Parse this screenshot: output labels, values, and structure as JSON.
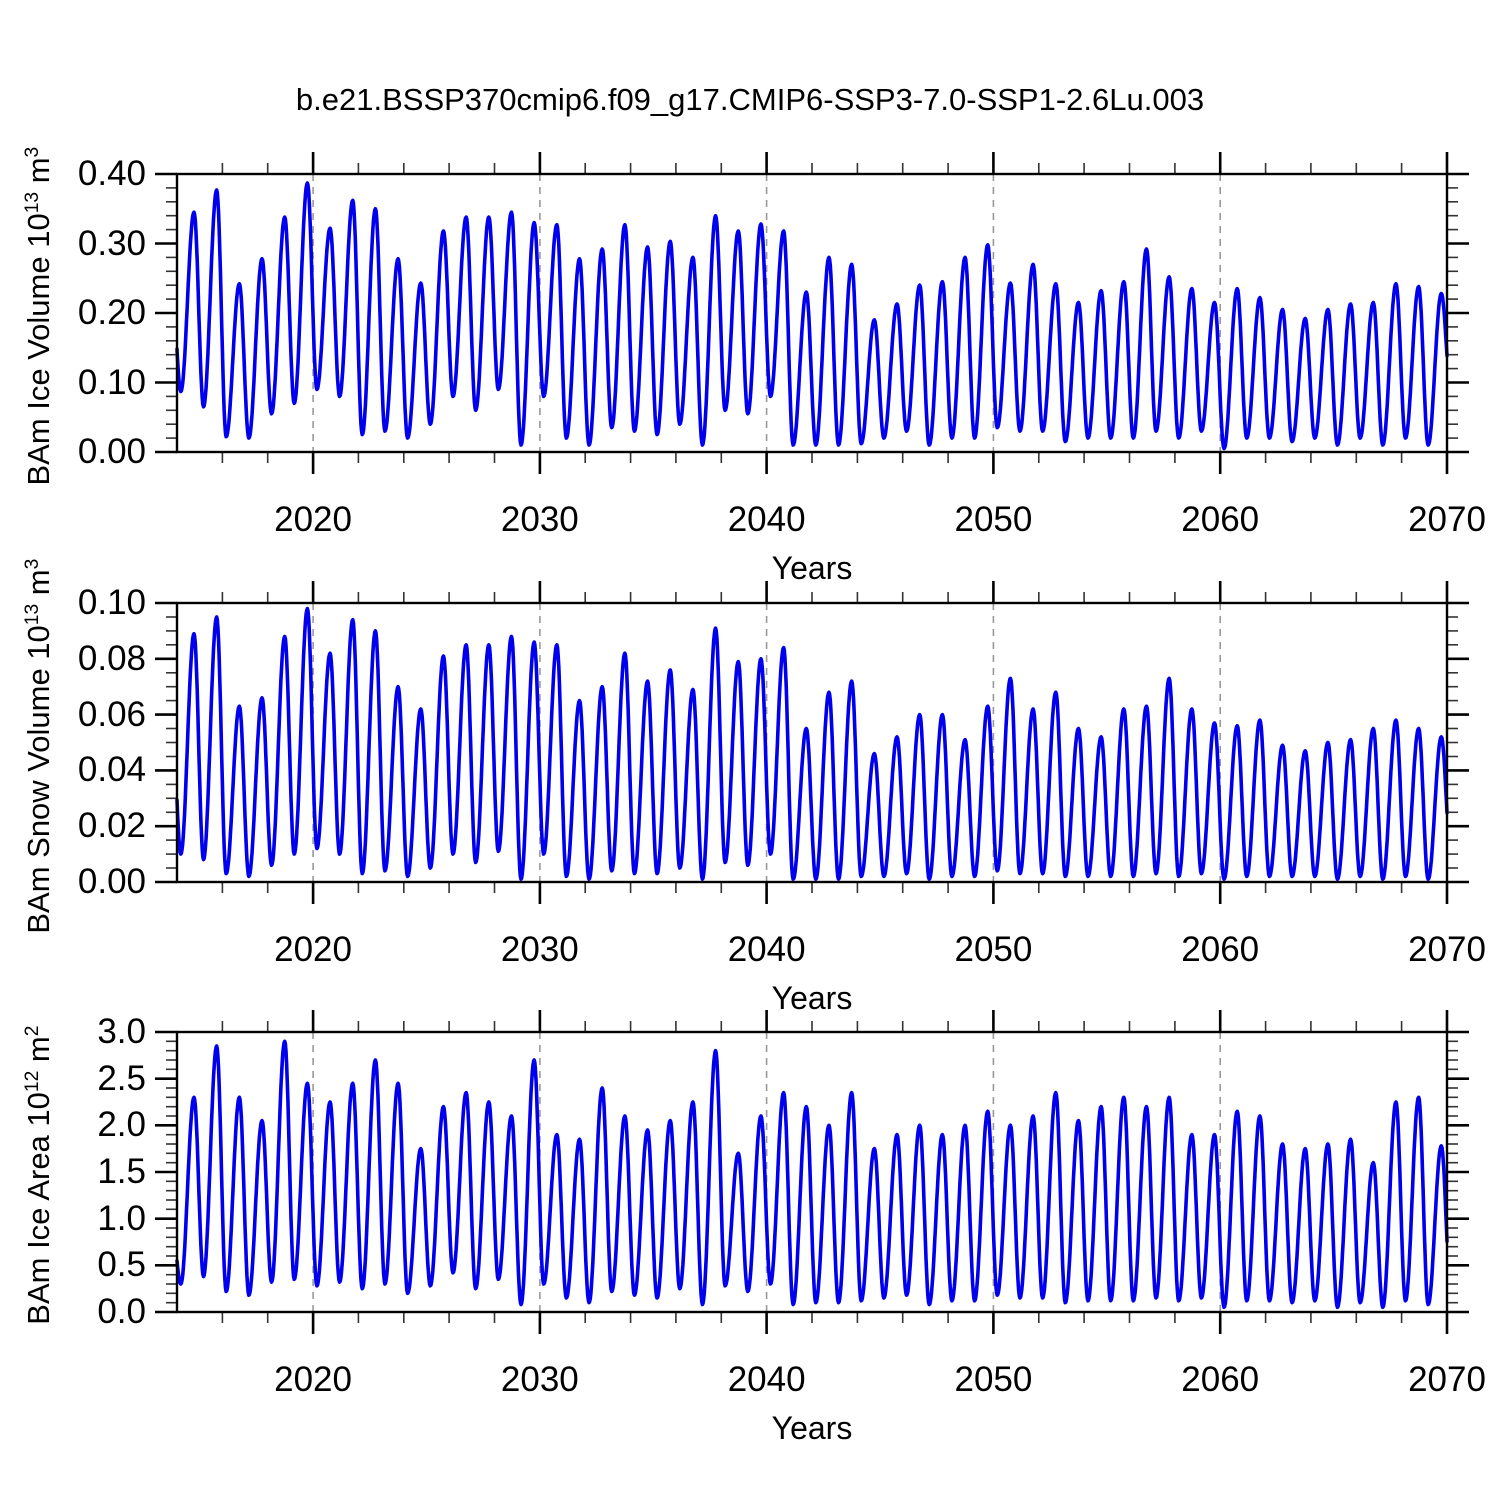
{
  "title": "b.e21.BSSP370cmip6.f09_g17.CMIP6-SSP3-7.0-SSP1-2.6Lu.003",
  "colors": {
    "line": "#0000EE",
    "grid": "#999999",
    "axis": "#000000",
    "minor_tick": "#333333",
    "background": "#FFFFFF",
    "text": "#000000"
  },
  "chart_data": [
    {
      "type": "line",
      "id": "ice-volume",
      "ylabel": {
        "base": "BAm Ice Volume 10",
        "exp": "13",
        "unit": " m",
        "unit_exp": "3"
      },
      "xlabel": "Years",
      "xlim": [
        2014,
        2070
      ],
      "ylim": [
        0,
        0.4
      ],
      "yticks": [
        0,
        0.1,
        0.2,
        0.3,
        0.4
      ],
      "ytick_labels": [
        "0.00",
        "0.10",
        "0.20",
        "0.30",
        "0.40"
      ],
      "yminor_step": 0.02,
      "xticks": [
        2020,
        2030,
        2040,
        2050,
        2060,
        2070
      ],
      "xtick_labels": [
        "2020",
        "2030",
        "2040",
        "2050",
        "2060",
        "2070"
      ],
      "xminor_step": 2,
      "gridlines_x": [
        2020,
        2030,
        2040,
        2050,
        2060
      ],
      "grid_on": true,
      "legend": "none",
      "series": {
        "name": "BAm ice volume",
        "max_start_year": 2013,
        "min_start_year": 2014,
        "peak_phase": 0.75,
        "trough_phase": 1.17,
        "annual_max": [
          0.26,
          0.345,
          0.377,
          0.242,
          0.278,
          0.338,
          0.387,
          0.322,
          0.362,
          0.35,
          0.278,
          0.243,
          0.318,
          0.338,
          0.338,
          0.345,
          0.33,
          0.327,
          0.278,
          0.292,
          0.327,
          0.295,
          0.303,
          0.28,
          0.34,
          0.318,
          0.328,
          0.318,
          0.23,
          0.28,
          0.27,
          0.19,
          0.213,
          0.24,
          0.245,
          0.28,
          0.298,
          0.243,
          0.27,
          0.242,
          0.215,
          0.232,
          0.245,
          0.292,
          0.252,
          0.235,
          0.215,
          0.235,
          0.222,
          0.205,
          0.192,
          0.205,
          0.213,
          0.215,
          0.242,
          0.238,
          0.228
        ],
        "annual_min": [
          0.087,
          0.065,
          0.022,
          0.02,
          0.055,
          0.07,
          0.09,
          0.08,
          0.025,
          0.03,
          0.02,
          0.04,
          0.08,
          0.06,
          0.09,
          0.01,
          0.08,
          0.02,
          0.01,
          0.035,
          0.03,
          0.025,
          0.04,
          0.01,
          0.06,
          0.055,
          0.08,
          0.01,
          0.01,
          0.01,
          0.012,
          0.02,
          0.03,
          0.01,
          0.02,
          0.02,
          0.035,
          0.03,
          0.03,
          0.015,
          0.02,
          0.02,
          0.02,
          0.03,
          0.02,
          0.03,
          0.005,
          0.02,
          0.02,
          0.015,
          0.02,
          0.01,
          0.02,
          0.01,
          0.02,
          0.01,
          0.09
        ]
      }
    },
    {
      "type": "line",
      "id": "snow-volume",
      "ylabel": {
        "base": "BAm Snow Volume 10",
        "exp": "13",
        "unit": " m",
        "unit_exp": "3"
      },
      "xlabel": "Years",
      "xlim": [
        2014,
        2070
      ],
      "ylim": [
        0,
        0.1
      ],
      "yticks": [
        0,
        0.02,
        0.04,
        0.06,
        0.08,
        0.1
      ],
      "ytick_labels": [
        "0.00",
        "0.02",
        "0.04",
        "0.06",
        "0.08",
        "0.10"
      ],
      "yminor_step": 0.005,
      "xticks": [
        2020,
        2030,
        2040,
        2050,
        2060,
        2070
      ],
      "xtick_labels": [
        "2020",
        "2030",
        "2040",
        "2050",
        "2060",
        "2070"
      ],
      "xminor_step": 2,
      "gridlines_x": [
        2020,
        2030,
        2040,
        2050,
        2060
      ],
      "grid_on": true,
      "legend": "none",
      "series": {
        "name": "BAm snow volume",
        "max_start_year": 2013,
        "min_start_year": 2014,
        "peak_phase": 0.75,
        "trough_phase": 1.17,
        "annual_max": [
          0.065,
          0.089,
          0.095,
          0.063,
          0.066,
          0.088,
          0.098,
          0.082,
          0.094,
          0.09,
          0.07,
          0.062,
          0.081,
          0.085,
          0.085,
          0.088,
          0.086,
          0.085,
          0.065,
          0.07,
          0.082,
          0.072,
          0.076,
          0.069,
          0.091,
          0.079,
          0.08,
          0.084,
          0.055,
          0.068,
          0.072,
          0.046,
          0.052,
          0.06,
          0.06,
          0.051,
          0.063,
          0.073,
          0.062,
          0.068,
          0.055,
          0.052,
          0.062,
          0.063,
          0.073,
          0.062,
          0.057,
          0.056,
          0.058,
          0.049,
          0.047,
          0.05,
          0.051,
          0.055,
          0.058,
          0.055,
          0.052
        ],
        "annual_min": [
          0.01,
          0.008,
          0.003,
          0.002,
          0.006,
          0.01,
          0.012,
          0.01,
          0.003,
          0.004,
          0.002,
          0.005,
          0.01,
          0.007,
          0.011,
          0.001,
          0.01,
          0.002,
          0.001,
          0.004,
          0.003,
          0.003,
          0.005,
          0.001,
          0.007,
          0.006,
          0.01,
          0.001,
          0.001,
          0.001,
          0.002,
          0.002,
          0.003,
          0.001,
          0.002,
          0.002,
          0.004,
          0.003,
          0.003,
          0.002,
          0.002,
          0.002,
          0.002,
          0.003,
          0.002,
          0.003,
          0.001,
          0.002,
          0.002,
          0.002,
          0.002,
          0.001,
          0.002,
          0.001,
          0.002,
          0.001,
          0.01
        ]
      }
    },
    {
      "type": "line",
      "id": "ice-area",
      "ylabel": {
        "base": "BAm Ice Area 10",
        "exp": "12",
        "unit": " m",
        "unit_exp": "2"
      },
      "xlabel": "Years",
      "xlim": [
        2014,
        2070
      ],
      "ylim": [
        0,
        3.0
      ],
      "yticks": [
        0,
        0.5,
        1.0,
        1.5,
        2.0,
        2.5,
        3.0
      ],
      "ytick_labels": [
        "0.0",
        "0.5",
        "1.0",
        "1.5",
        "2.0",
        "2.5",
        "3.0"
      ],
      "yminor_step": 0.1,
      "xticks": [
        2020,
        2030,
        2040,
        2050,
        2060,
        2070
      ],
      "xtick_labels": [
        "2020",
        "2030",
        "2040",
        "2050",
        "2060",
        "2070"
      ],
      "xminor_step": 2,
      "gridlines_x": [
        2020,
        2030,
        2040,
        2050,
        2060
      ],
      "grid_on": true,
      "legend": "none",
      "series": {
        "name": "BAm ice area",
        "max_start_year": 2013,
        "min_start_year": 2014,
        "peak_phase": 0.75,
        "trough_phase": 1.17,
        "annual_max": [
          1.0,
          2.3,
          2.85,
          2.3,
          2.05,
          2.9,
          2.45,
          2.25,
          2.45,
          2.7,
          2.45,
          1.75,
          2.2,
          2.35,
          2.25,
          2.1,
          2.7,
          1.9,
          1.85,
          2.4,
          2.1,
          1.95,
          2.05,
          2.25,
          2.8,
          1.7,
          2.1,
          2.35,
          2.2,
          2.0,
          2.35,
          1.75,
          1.9,
          2.0,
          1.9,
          2.0,
          2.15,
          2.0,
          2.1,
          2.35,
          2.05,
          2.2,
          2.3,
          2.2,
          2.3,
          1.9,
          1.9,
          2.15,
          2.1,
          1.8,
          1.75,
          1.8,
          1.85,
          1.6,
          2.25,
          2.3,
          1.78
        ],
        "annual_min": [
          0.3,
          0.38,
          0.22,
          0.18,
          0.32,
          0.35,
          0.28,
          0.32,
          0.25,
          0.3,
          0.2,
          0.28,
          0.42,
          0.25,
          0.35,
          0.08,
          0.3,
          0.15,
          0.1,
          0.22,
          0.18,
          0.15,
          0.25,
          0.08,
          0.28,
          0.22,
          0.3,
          0.08,
          0.1,
          0.1,
          0.12,
          0.15,
          0.18,
          0.08,
          0.12,
          0.12,
          0.18,
          0.15,
          0.15,
          0.1,
          0.12,
          0.12,
          0.12,
          0.15,
          0.12,
          0.15,
          0.05,
          0.12,
          0.12,
          0.1,
          0.12,
          0.05,
          0.1,
          0.05,
          0.12,
          0.08,
          0.2
        ]
      }
    }
  ]
}
